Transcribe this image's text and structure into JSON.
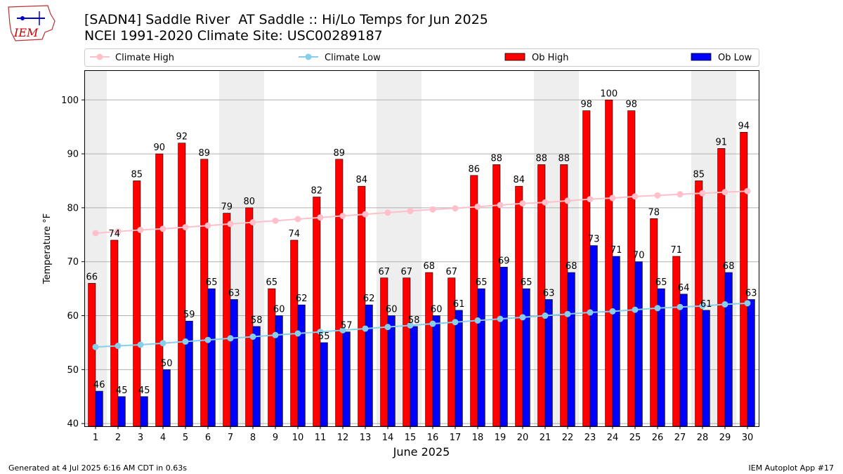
{
  "header": {
    "title_line1": "[SADN4] Saddle River  AT Saddle :: Hi/Lo Temps for Jun 2025",
    "title_line2": "NCEI 1991-2020 Climate Site: USC00289187",
    "logo_text": "IEM"
  },
  "footer": {
    "left": "Generated at 4 Jul 2025 6:16 AM CDT in 0.63s",
    "right": "IEM Autoplot App #17"
  },
  "colors": {
    "ob_high": "#ff0000",
    "ob_low": "#0000ff",
    "climate_high": "#ffc0cb",
    "climate_low": "#87ceeb",
    "weekend_band": "#eeeeee",
    "grid": "#b0b0b0"
  },
  "chart_data": {
    "type": "bar",
    "xlabel": "June 2025",
    "ylabel": "Temperature °F",
    "ylim": [
      39.5,
      105.5
    ],
    "yticks": [
      40,
      50,
      60,
      70,
      80,
      90,
      100
    ],
    "grid": "horizontal",
    "legend_position": "top",
    "categories": [
      "1",
      "2",
      "3",
      "4",
      "5",
      "6",
      "7",
      "8",
      "9",
      "10",
      "11",
      "12",
      "13",
      "14",
      "15",
      "16",
      "17",
      "18",
      "19",
      "20",
      "21",
      "22",
      "23",
      "24",
      "25",
      "26",
      "27",
      "28",
      "29",
      "30"
    ],
    "shaded_days": [
      [
        1,
        1
      ],
      [
        7,
        8
      ],
      [
        14,
        15
      ],
      [
        21,
        22
      ],
      [
        28,
        29
      ]
    ],
    "series": [
      {
        "name": "Climate High",
        "kind": "line",
        "values": [
          75.3,
          75.6,
          75.9,
          76.1,
          76.4,
          76.7,
          77.0,
          77.3,
          77.6,
          77.9,
          78.2,
          78.5,
          78.8,
          79.1,
          79.4,
          79.7,
          79.9,
          80.2,
          80.5,
          80.8,
          81.0,
          81.3,
          81.6,
          81.8,
          82.1,
          82.3,
          82.5,
          82.7,
          82.9,
          83.1
        ]
      },
      {
        "name": "Climate Low",
        "kind": "line",
        "values": [
          54.2,
          54.4,
          54.6,
          54.9,
          55.2,
          55.5,
          55.8,
          56.1,
          56.4,
          56.7,
          57.0,
          57.3,
          57.6,
          57.9,
          58.2,
          58.5,
          58.8,
          59.1,
          59.4,
          59.7,
          60.0,
          60.3,
          60.6,
          60.8,
          61.1,
          61.4,
          61.6,
          61.8,
          62.1,
          62.3
        ]
      },
      {
        "name": "Ob High",
        "kind": "bar",
        "values": [
          66,
          74,
          85,
          90,
          92,
          89,
          79,
          80,
          65,
          74,
          82,
          89,
          84,
          67,
          67,
          68,
          67,
          86,
          88,
          84,
          88,
          88,
          98,
          100,
          98,
          78,
          71,
          85,
          91,
          94
        ]
      },
      {
        "name": "Ob Low",
        "kind": "bar",
        "values": [
          46,
          45,
          45,
          50,
          59,
          65,
          63,
          58,
          60,
          62,
          55,
          57,
          62,
          60,
          58,
          60,
          61,
          65,
          69,
          65,
          63,
          68,
          73,
          71,
          70,
          65,
          64,
          61,
          68,
          63
        ]
      }
    ]
  }
}
